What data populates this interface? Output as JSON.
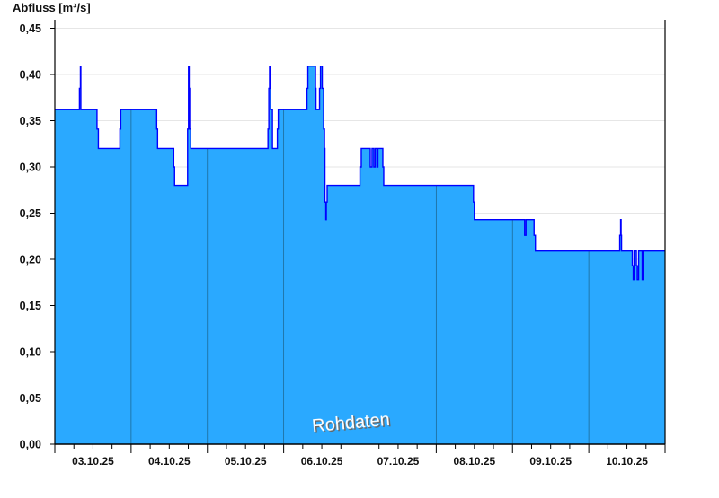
{
  "chart_data": {
    "type": "area",
    "title": "",
    "ylabel": "Abfluss [m³/s]",
    "xlabel": "",
    "watermark": "Rohdaten",
    "ylim": [
      0,
      0.45
    ],
    "xlim": [
      "2025-10-03T00:00",
      "2025-10-11T00:00"
    ],
    "yticks": [
      "0,00",
      "0,05",
      "0,10",
      "0,15",
      "0,20",
      "0,25",
      "0,30",
      "0,35",
      "0,40",
      "0,45"
    ],
    "xticks": [
      "03.10.25",
      "04.10.25",
      "05.10.25",
      "06.10.25",
      "07.10.25",
      "08.10.25",
      "09.10.25",
      "10.10.25"
    ],
    "grid": true,
    "step": true,
    "colors": {
      "fill": "#2aa9ff",
      "line": "#0000ff",
      "day_divider": "#1d6a96",
      "grid": "#e6e6e6"
    },
    "series": [
      {
        "points": [
          [
            "2025-10-03T00:00",
            0.362
          ],
          [
            "2025-10-03T07:45",
            0.385
          ],
          [
            "2025-10-03T08:03",
            0.409
          ],
          [
            "2025-10-03T08:11",
            0.362
          ],
          [
            "2025-10-03T13:16",
            0.341
          ],
          [
            "2025-10-03T13:42",
            0.32
          ],
          [
            "2025-10-03T20:28",
            0.341
          ],
          [
            "2025-10-03T20:45",
            0.362
          ],
          [
            "2025-10-04T08:03",
            0.341
          ],
          [
            "2025-10-04T08:20",
            0.32
          ],
          [
            "2025-10-04T13:25",
            0.3
          ],
          [
            "2025-10-04T13:41",
            0.28
          ],
          [
            "2025-10-04T17:47",
            0.341
          ],
          [
            "2025-10-04T18:04",
            0.409
          ],
          [
            "2025-10-04T18:16",
            0.385
          ],
          [
            "2025-10-04T18:26",
            0.341
          ],
          [
            "2025-10-04T18:47",
            0.32
          ],
          [
            "2025-10-05T19:04",
            0.341
          ],
          [
            "2025-10-05T19:20",
            0.385
          ],
          [
            "2025-10-05T19:34",
            0.409
          ],
          [
            "2025-10-05T19:43",
            0.385
          ],
          [
            "2025-10-05T19:55",
            0.362
          ],
          [
            "2025-10-05T20:28",
            0.32
          ],
          [
            "2025-10-05T22:01",
            0.341
          ],
          [
            "2025-10-05T22:18",
            0.362
          ],
          [
            "2025-10-06T07:20",
            0.385
          ],
          [
            "2025-10-06T07:37",
            0.409
          ],
          [
            "2025-10-06T10:01",
            0.385
          ],
          [
            "2025-10-06T10:10",
            0.362
          ],
          [
            "2025-10-06T11:17",
            0.385
          ],
          [
            "2025-10-06T11:35",
            0.409
          ],
          [
            "2025-10-06T12:08",
            0.385
          ],
          [
            "2025-10-06T12:34",
            0.341
          ],
          [
            "2025-10-06T12:51",
            0.32
          ],
          [
            "2025-10-06T12:59",
            0.262
          ],
          [
            "2025-10-06T13:16",
            0.243
          ],
          [
            "2025-10-06T13:25",
            0.262
          ],
          [
            "2025-10-06T13:41",
            0.28
          ],
          [
            "2025-10-07T00:00",
            0.3
          ],
          [
            "2025-10-07T00:25",
            0.32
          ],
          [
            "2025-10-07T03:15",
            0.3
          ],
          [
            "2025-10-07T03:48",
            0.32
          ],
          [
            "2025-10-07T04:22",
            0.3
          ],
          [
            "2025-10-07T04:48",
            0.32
          ],
          [
            "2025-10-07T05:22",
            0.3
          ],
          [
            "2025-10-07T05:39",
            0.32
          ],
          [
            "2025-10-07T07:12",
            0.3
          ],
          [
            "2025-10-07T07:29",
            0.28
          ],
          [
            "2025-10-08T11:43",
            0.262
          ],
          [
            "2025-10-08T11:59",
            0.243
          ],
          [
            "2025-10-09T03:49",
            0.226
          ],
          [
            "2025-10-09T04:14",
            0.243
          ],
          [
            "2025-10-09T06:47",
            0.226
          ],
          [
            "2025-10-09T07:12",
            0.209
          ],
          [
            "2025-10-10T09:44",
            0.226
          ],
          [
            "2025-10-10T10:01",
            0.243
          ],
          [
            "2025-10-10T10:10",
            0.226
          ],
          [
            "2025-10-10T10:18",
            0.209
          ],
          [
            "2025-10-10T13:41",
            0.193
          ],
          [
            "2025-10-10T13:59",
            0.178
          ],
          [
            "2025-10-10T14:16",
            0.209
          ],
          [
            "2025-10-10T14:58",
            0.193
          ],
          [
            "2025-10-10T15:15",
            0.178
          ],
          [
            "2025-10-10T15:40",
            0.209
          ],
          [
            "2025-10-10T16:48",
            0.178
          ],
          [
            "2025-10-10T17:05",
            0.209
          ],
          [
            "2025-10-11T00:00",
            0.209
          ]
        ]
      }
    ]
  }
}
